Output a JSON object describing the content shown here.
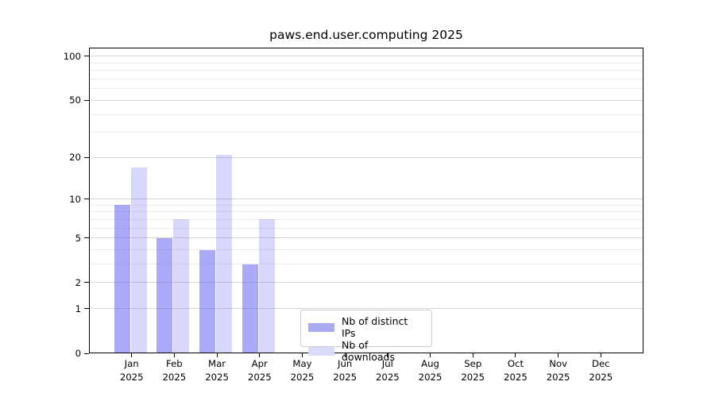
{
  "chart_data": {
    "type": "bar",
    "title": "paws.end.user.computing 2025",
    "categories": [
      "Jan 2025",
      "Feb 2025",
      "Mar 2025",
      "Apr 2025",
      "May 2025",
      "Jun 2025",
      "Jul 2025",
      "Aug 2025",
      "Sep 2025",
      "Oct 2025",
      "Nov 2025",
      "Dec 2025"
    ],
    "series": [
      {
        "name": "Nb of distinct IPs",
        "legend_color": "#aaaaf3",
        "fill": "rgba(100,100,242,0.55)",
        "values": [
          9,
          5,
          4,
          3,
          null,
          null,
          null,
          null,
          null,
          null,
          null,
          null
        ]
      },
      {
        "name": "Nb of downloads",
        "legend_color": "#dadaf9",
        "fill": "rgba(100,100,242,0.25)",
        "values": [
          17,
          7,
          21,
          7,
          null,
          null,
          null,
          null,
          null,
          null,
          null,
          null
        ]
      }
    ],
    "y_axis": {
      "scale": "log10(1+y)",
      "ticks": [
        0,
        1,
        2,
        5,
        10,
        20,
        50,
        100
      ],
      "minor_gridlines": [
        3,
        4,
        6,
        7,
        8,
        9,
        30,
        40,
        60,
        70,
        80,
        90
      ],
      "ylim": [
        0,
        110
      ]
    },
    "x_axis": {
      "tick_count": 12
    },
    "legend": {
      "position": "lower center"
    },
    "grid": true,
    "colors": {
      "major_grid": "#d4d4d4",
      "minor_grid": "#ececec",
      "spine": "#000000",
      "text": "#000000"
    }
  }
}
